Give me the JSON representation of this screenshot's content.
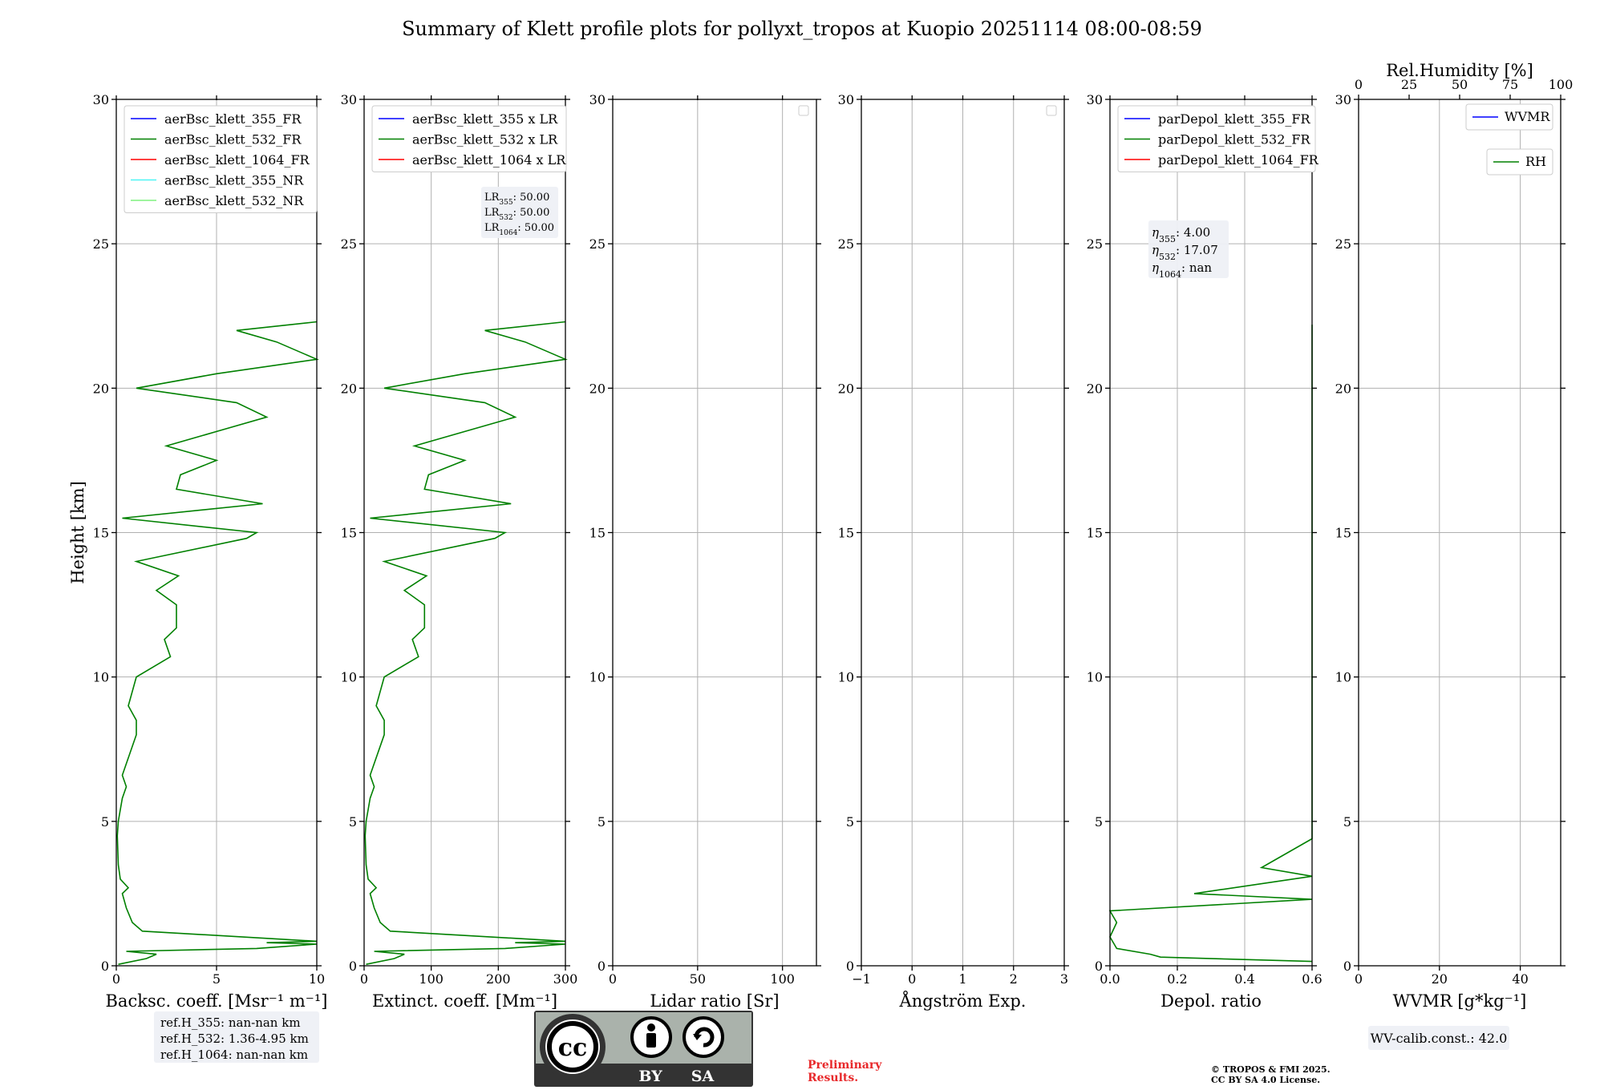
{
  "title": "Summary of Klett profile plots for pollyxt_tropos at Kuopio 20251114 08:00-08:59",
  "colors": {
    "b355": "#0000ff",
    "g532": "#008000",
    "r1064": "#ff0000",
    "cyan355nr": "#4ef5f5",
    "lime532nr": "#7ef27e"
  },
  "chart_data": [
    {
      "id": "bsc",
      "type": "line",
      "xlabel": "Backsc. coeff. [Msr⁻¹ m⁻¹]",
      "ylabel": "Height [km]",
      "xlim": [
        0,
        10
      ],
      "ylim": [
        0,
        30
      ],
      "xticks": [
        0,
        5,
        10
      ],
      "xticklabels": [
        "0",
        "5",
        "10"
      ],
      "yticks": [
        0,
        5,
        10,
        15,
        20,
        25,
        30
      ],
      "yticklabels": [
        "0",
        "5",
        "10",
        "15",
        "20",
        "25",
        "30"
      ],
      "legend": [
        "aerBsc_klett_355_FR",
        "aerBsc_klett_532_FR",
        "aerBsc_klett_1064_FR",
        "aerBsc_klett_355_NR",
        "aerBsc_klett_532_NR"
      ],
      "legend_colors": [
        "#0000ff",
        "#008000",
        "#ff0000",
        "#4ef5f5",
        "#7ef27e"
      ],
      "series_532": [
        [
          0.1,
          0.05
        ],
        [
          1.5,
          0.25
        ],
        [
          2.0,
          0.4
        ],
        [
          0.5,
          0.5
        ],
        [
          7.0,
          0.6
        ],
        [
          10.0,
          0.75
        ],
        [
          7.5,
          0.8
        ],
        [
          10.0,
          0.85
        ],
        [
          1.3,
          1.2
        ],
        [
          0.8,
          1.5
        ],
        [
          0.5,
          2.0
        ],
        [
          0.3,
          2.5
        ],
        [
          0.6,
          2.7
        ],
        [
          0.2,
          3.0
        ],
        [
          0.1,
          3.5
        ],
        [
          0.05,
          4.5
        ],
        [
          0.1,
          5.0
        ],
        [
          0.3,
          5.8
        ],
        [
          0.5,
          6.2
        ],
        [
          0.3,
          6.6
        ],
        [
          1.0,
          8.0
        ],
        [
          1.0,
          8.5
        ],
        [
          0.6,
          9.0
        ],
        [
          1.0,
          10.0
        ],
        [
          2.7,
          10.7
        ],
        [
          2.4,
          11.3
        ],
        [
          3.0,
          11.7
        ],
        [
          3.0,
          12.5
        ],
        [
          2.0,
          13.0
        ],
        [
          3.1,
          13.5
        ],
        [
          1.0,
          14.0
        ],
        [
          6.5,
          14.8
        ],
        [
          7.0,
          15.0
        ],
        [
          0.3,
          15.5
        ],
        [
          7.3,
          16.0
        ],
        [
          3.0,
          16.5
        ],
        [
          3.2,
          17.0
        ],
        [
          5.0,
          17.5
        ],
        [
          2.5,
          18.0
        ],
        [
          5.0,
          18.5
        ],
        [
          7.5,
          19.0
        ],
        [
          6.0,
          19.5
        ],
        [
          1.0,
          20.0
        ],
        [
          5.0,
          20.5
        ],
        [
          10.0,
          21.0
        ],
        [
          8.0,
          21.6
        ],
        [
          6.0,
          22.0
        ],
        [
          10.0,
          22.3
        ]
      ]
    },
    {
      "id": "ext",
      "type": "line",
      "xlabel": "Extinct. coeff. [Mm⁻¹]",
      "xlim": [
        0,
        300
      ],
      "ylim": [
        0,
        30
      ],
      "xticks": [
        0,
        100,
        200,
        300
      ],
      "xticklabels": [
        "0",
        "100",
        "200",
        "300"
      ],
      "yticks": [
        0,
        5,
        10,
        15,
        20,
        25,
        30
      ],
      "yticklabels": [
        "0",
        "5",
        "10",
        "15",
        "20",
        "25",
        "30"
      ],
      "legend": [
        "aerBsc_klett_355 x LR",
        "aerBsc_klett_532 x LR",
        "aerBsc_klett_1064 x LR"
      ],
      "legend_colors": [
        "#0000ff",
        "#008000",
        "#ff0000"
      ],
      "lr_annotation": [
        {
          "sub": "355",
          "value": "50.00"
        },
        {
          "sub": "532",
          "value": "50.00"
        },
        {
          "sub": "1064",
          "value": "50.00"
        }
      ],
      "scale_from_bsc": 30
    },
    {
      "id": "lr",
      "type": "line",
      "xlabel": "Lidar ratio [Sr]",
      "xlim": [
        0,
        120
      ],
      "ylim": [
        0,
        30
      ],
      "xticks": [
        0,
        50,
        100
      ],
      "xticklabels": [
        "0",
        "50",
        "100"
      ],
      "yticks": [
        0,
        5,
        10,
        15,
        20,
        25,
        30
      ],
      "yticklabels": [
        "0",
        "5",
        "10",
        "15",
        "20",
        "25",
        "30"
      ],
      "legend": []
    },
    {
      "id": "ang",
      "type": "line",
      "xlabel": "Ångström Exp.",
      "xlim": [
        -1,
        3
      ],
      "ylim": [
        0,
        30
      ],
      "xticks": [
        -1,
        0,
        1,
        2,
        3
      ],
      "xticklabels": [
        "−1",
        "0",
        "1",
        "2",
        "3"
      ],
      "yticks": [
        0,
        5,
        10,
        15,
        20,
        25,
        30
      ],
      "yticklabels": [
        "0",
        "5",
        "10",
        "15",
        "20",
        "25",
        "30"
      ],
      "legend": []
    },
    {
      "id": "depol",
      "type": "line",
      "xlabel": "Depol. ratio",
      "xlim": [
        0,
        0.6
      ],
      "ylim": [
        0,
        30
      ],
      "xticks": [
        0,
        0.2,
        0.4,
        0.6
      ],
      "xticklabels": [
        "0.0",
        "0.2",
        "0.4",
        "0.6"
      ],
      "yticks": [
        0,
        5,
        10,
        15,
        20,
        25,
        30
      ],
      "yticklabels": [
        "0",
        "5",
        "10",
        "15",
        "20",
        "25",
        "30"
      ],
      "legend": [
        "parDepol_klett_355_FR",
        "parDepol_klett_532_FR",
        "parDepol_klett_1064_FR"
      ],
      "legend_colors": [
        "#0000ff",
        "#008000",
        "#ff0000"
      ],
      "eta_annotation": [
        {
          "sub": "355",
          "value": "4.00"
        },
        {
          "sub": "532",
          "value": "17.07"
        },
        {
          "sub": "1064",
          "value": "nan"
        }
      ],
      "series_532": [
        [
          0.6,
          0.15
        ],
        [
          0.15,
          0.3
        ],
        [
          0.12,
          0.4
        ],
        [
          0.02,
          0.6
        ],
        [
          0.0,
          1.0
        ],
        [
          0.02,
          1.5
        ],
        [
          0.0,
          1.9
        ],
        [
          0.6,
          2.3
        ],
        [
          0.25,
          2.5
        ],
        [
          0.6,
          3.1
        ],
        [
          0.45,
          3.4
        ],
        [
          0.6,
          4.4
        ],
        [
          0.6,
          4.9
        ],
        [
          0.6,
          5.7
        ],
        [
          0.6,
          6.5
        ],
        [
          0.6,
          7.5
        ],
        [
          0.6,
          8.5
        ],
        [
          0.6,
          9.5
        ],
        [
          0.6,
          10.3
        ],
        [
          0.6,
          11.0
        ],
        [
          0.6,
          11.8
        ],
        [
          0.6,
          12.7
        ],
        [
          0.6,
          13.3
        ],
        [
          0.6,
          14.0
        ],
        [
          0.6,
          15.0
        ],
        [
          0.6,
          15.8
        ],
        [
          0.6,
          16.8
        ],
        [
          0.6,
          17.8
        ],
        [
          0.6,
          18.2
        ],
        [
          0.6,
          18.9
        ],
        [
          0.6,
          19.6
        ],
        [
          0.6,
          20.3
        ],
        [
          0.6,
          21.0
        ],
        [
          0.6,
          21.6
        ],
        [
          0.6,
          22.2
        ]
      ]
    },
    {
      "id": "wv",
      "type": "line",
      "xlabel": "WVMR [g*kg⁻¹]",
      "xlim": [
        0,
        50
      ],
      "ylim": [
        0,
        30
      ],
      "xticks": [
        0,
        20,
        40
      ],
      "xticklabels": [
        "0",
        "20",
        "40"
      ],
      "yticks": [
        0,
        5,
        10,
        15,
        20,
        25,
        30
      ],
      "yticklabels": [
        "0",
        "5",
        "10",
        "15",
        "20",
        "25",
        "30"
      ],
      "top_xlabel": "Rel.Humidity [%]",
      "top_xlim": [
        0,
        100
      ],
      "top_xticks": [
        0,
        25,
        50,
        75,
        100
      ],
      "top_xticklabels": [
        "0",
        "25",
        "50",
        "75",
        "100"
      ],
      "legend": [
        "WVMR",
        "RH"
      ],
      "legend_colors": [
        "#0000ff",
        "#008000"
      ]
    }
  ],
  "refh": [
    "ref.H_355: nan-nan km",
    "ref.H_532: 1.36-4.95 km",
    "ref.H_1064: nan-nan km"
  ],
  "license_badge": {
    "left": "BY",
    "right": "SA"
  },
  "prelim": [
    "Preliminary",
    "Results."
  ],
  "copyright": [
    "© TROPOS & FMI 2025.",
    "CC BY SA 4.0 License."
  ],
  "wv_calib": "WV-calib.const.: 42.0"
}
